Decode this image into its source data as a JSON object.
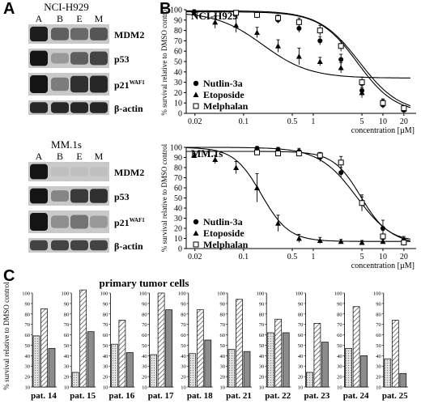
{
  "panel_letters": {
    "a": "A",
    "b": "B",
    "c": "C"
  },
  "blots": [
    {
      "cell_line": "NCI-H929",
      "lanes": [
        "A",
        "B",
        "E",
        "M"
      ],
      "proteins": [
        {
          "label": "MDM2",
          "sup": "",
          "intensity": [
            0.9,
            0.55,
            0.5,
            0.6
          ]
        },
        {
          "label": "p53",
          "sup": "",
          "intensity": [
            0.95,
            0.25,
            0.55,
            0.7
          ]
        },
        {
          "label": "p21",
          "sup": "WAF1",
          "intensity": [
            0.95,
            0.4,
            0.8,
            0.85
          ]
        },
        {
          "label": "β-actin",
          "sup": "",
          "intensity": [
            0.85,
            0.85,
            0.85,
            0.85
          ]
        }
      ]
    },
    {
      "cell_line": "MM.1s",
      "lanes": [
        "A",
        "B",
        "E",
        "M"
      ],
      "proteins": [
        {
          "label": "MDM2",
          "sup": "",
          "intensity": [
            0.95,
            0.05,
            0.05,
            0.05
          ]
        },
        {
          "label": "p53",
          "sup": "",
          "intensity": [
            0.95,
            0.35,
            0.75,
            0.8
          ]
        },
        {
          "label": "p21",
          "sup": "WAF1",
          "intensity": [
            0.95,
            0.3,
            0.45,
            0.25
          ]
        },
        {
          "label": "β-actin",
          "sup": "",
          "intensity": [
            0.7,
            0.7,
            0.7,
            0.7
          ]
        }
      ]
    }
  ],
  "chart_data": [
    {
      "type": "line",
      "title": "NCI-H929",
      "xlabel": "concentration [µM]",
      "ylabel": "% survival relative to DMSO control",
      "x_scale": "log",
      "xlim": [
        0.015,
        30
      ],
      "ylim": [
        0,
        100
      ],
      "x_ticks": [
        0.02,
        0.1,
        0.5,
        1,
        5,
        10,
        20
      ],
      "x_tick_labels": [
        "0.02",
        "0.1",
        "0.5",
        "1",
        "5",
        "10",
        "20"
      ],
      "y_ticks": [
        0,
        10,
        20,
        30,
        40,
        50,
        60,
        70,
        80,
        90,
        100
      ],
      "legend_position": "bottom-left",
      "series": [
        {
          "name": "Nutlin-3a",
          "marker": "circle",
          "x": [
            0.0195,
            0.078,
            0.156,
            0.3125,
            0.625,
            1.25,
            2.5,
            5,
            10,
            20
          ],
          "y": [
            98,
            96,
            95,
            90,
            82,
            70,
            52,
            22,
            8,
            3
          ],
          "err": [
            2,
            2,
            3,
            3,
            4,
            4,
            5,
            5,
            3,
            2
          ]
        },
        {
          "name": "Etoposide",
          "marker": "triangle",
          "x": [
            0.0195,
            0.039,
            0.078,
            0.156,
            0.3125,
            0.625,
            1.25,
            2.5,
            5,
            10,
            20
          ],
          "y": [
            97,
            88,
            85,
            78,
            65,
            55,
            50,
            44,
            20,
            10,
            4
          ],
          "err": [
            2,
            6,
            7,
            5,
            6,
            8,
            4,
            5,
            5,
            4,
            2
          ]
        },
        {
          "name": "Melphalan",
          "marker": "square",
          "x": [
            0.078,
            0.156,
            0.3125,
            0.625,
            1.25,
            2.5,
            5,
            10,
            20
          ],
          "y": [
            97,
            95,
            92,
            88,
            80,
            65,
            30,
            10,
            5
          ],
          "err": [
            2,
            3,
            3,
            4,
            5,
            5,
            5,
            3,
            2
          ]
        }
      ],
      "curves": [
        {
          "series": "Nutlin-3a",
          "top": 98,
          "bottom": 0,
          "ic50": 4.3,
          "hill": 1.6
        },
        {
          "series": "Etoposide",
          "top": 98,
          "bottom": 34,
          "ic50": 0.19,
          "hill": 1.3
        },
        {
          "series": "Melphalan",
          "top": 99,
          "bottom": 0,
          "ic50": 4.6,
          "hill": 1.5
        }
      ]
    },
    {
      "type": "line",
      "title": "MM.1s",
      "xlabel": "concentration [µM]",
      "ylabel": "% survival relative to DMSO control",
      "x_scale": "log",
      "xlim": [
        0.015,
        30
      ],
      "ylim": [
        0,
        100
      ],
      "x_ticks": [
        0.02,
        0.1,
        0.5,
        1,
        5,
        10,
        20
      ],
      "x_tick_labels": [
        "0.02",
        "0.1",
        "0.5",
        "1",
        "5",
        "10",
        "20"
      ],
      "y_ticks": [
        0,
        10,
        20,
        30,
        40,
        50,
        60,
        70,
        80,
        90,
        100
      ],
      "legend_position": "bottom-left",
      "series": [
        {
          "name": "Nutlin-3a",
          "marker": "circle",
          "x": [
            0.156,
            0.3125,
            0.625,
            1.25,
            2.5,
            5,
            10,
            20
          ],
          "y": [
            99,
            98,
            96,
            90,
            75,
            45,
            20,
            8
          ],
          "err": [
            2,
            2,
            3,
            4,
            5,
            6,
            8,
            4
          ]
        },
        {
          "name": "Etoposide",
          "marker": "triangle",
          "x": [
            0.0195,
            0.039,
            0.078,
            0.156,
            0.3125,
            0.625,
            1.25,
            2.5,
            5,
            10,
            20
          ],
          "y": [
            92,
            88,
            80,
            60,
            25,
            10,
            8,
            7,
            6,
            7,
            6
          ],
          "err": [
            2,
            4,
            6,
            14,
            8,
            4,
            3,
            2,
            2,
            2,
            2
          ]
        },
        {
          "name": "Melphalan",
          "marker": "square",
          "x": [
            0.156,
            0.3125,
            0.625,
            1.25,
            2.5,
            5,
            10,
            20
          ],
          "y": [
            95,
            94,
            94,
            92,
            85,
            45,
            12,
            6
          ],
          "err": [
            2,
            2,
            3,
            3,
            6,
            8,
            6,
            3
          ]
        }
      ],
      "curves": [
        {
          "series": "Nutlin-3a",
          "top": 100,
          "bottom": 2,
          "ic50": 4.2,
          "hill": 1.6
        },
        {
          "series": "Etoposide",
          "top": 100,
          "bottom": 7,
          "ic50": 0.18,
          "hill": 2.2
        },
        {
          "series": "Melphalan",
          "top": 96,
          "bottom": 7,
          "ic50": 4.8,
          "hill": 2.2
        }
      ]
    },
    {
      "type": "bar",
      "title": "primary tumor cells",
      "ylabel": "% survival relative to DMSO control",
      "ylim": [
        10,
        100
      ],
      "y_ticks": [
        10,
        20,
        30,
        40,
        50,
        60,
        70,
        80,
        90,
        100
      ],
      "series_patterns": [
        "dotted",
        "hatched",
        "solid-gray"
      ],
      "categories": [
        "pat. 14",
        "pat. 15",
        "pat. 16",
        "pat. 17",
        "pat. 18",
        "pat. 21",
        "pat. 22",
        "pat. 23",
        "pat. 24",
        "pat. 25"
      ],
      "values": [
        [
          59,
          85,
          47
        ],
        [
          24,
          103,
          63
        ],
        [
          51,
          74,
          43
        ],
        [
          41,
          100,
          84
        ],
        [
          42,
          84,
          55
        ],
        [
          46,
          94,
          44
        ],
        [
          62,
          75,
          62
        ],
        [
          24,
          71,
          53
        ],
        [
          47,
          87,
          40
        ],
        [
          37,
          74,
          23
        ]
      ]
    }
  ]
}
